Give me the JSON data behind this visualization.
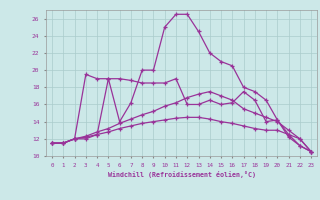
{
  "xlabel": "Windchill (Refroidissement éolien,°C)",
  "bg_color": "#cce8e8",
  "grid_color": "#aacccc",
  "line_color": "#993399",
  "xlim": [
    -0.5,
    23.5
  ],
  "ylim": [
    10,
    27
  ],
  "yticks": [
    10,
    12,
    14,
    16,
    18,
    20,
    22,
    24,
    26
  ],
  "xticks": [
    0,
    1,
    2,
    3,
    4,
    5,
    6,
    7,
    8,
    9,
    10,
    11,
    12,
    13,
    14,
    15,
    16,
    17,
    18,
    19,
    20,
    21,
    22,
    23
  ],
  "series1": {
    "x": [
      0,
      1,
      2,
      3,
      4,
      5,
      6,
      7,
      8,
      9,
      10,
      11,
      12,
      13,
      14,
      15,
      16,
      17,
      18,
      19,
      20,
      21,
      22,
      23
    ],
    "y": [
      11.5,
      11.5,
      12.0,
      19.5,
      19.0,
      19.0,
      14.0,
      16.2,
      20.0,
      20.0,
      25.0,
      26.5,
      26.5,
      24.5,
      22.0,
      21.0,
      20.5,
      18.0,
      17.5,
      16.5,
      14.2,
      12.2,
      11.2,
      10.5
    ]
  },
  "series2": {
    "x": [
      0,
      1,
      2,
      3,
      4,
      5,
      6,
      7,
      8,
      9,
      10,
      11,
      12,
      13,
      14,
      15,
      16,
      17,
      18,
      19,
      20,
      21,
      22,
      23
    ],
    "y": [
      11.5,
      11.5,
      12.0,
      12.0,
      12.5,
      19.0,
      19.0,
      18.8,
      18.5,
      18.5,
      18.5,
      19.0,
      16.0,
      16.0,
      16.5,
      16.0,
      16.2,
      17.5,
      16.5,
      14.0,
      14.2,
      12.5,
      11.2,
      10.5
    ]
  },
  "series3": {
    "x": [
      0,
      1,
      2,
      3,
      4,
      5,
      6,
      7,
      8,
      9,
      10,
      11,
      12,
      13,
      14,
      15,
      16,
      17,
      18,
      19,
      20,
      21,
      22,
      23
    ],
    "y": [
      11.5,
      11.5,
      12.0,
      12.3,
      12.8,
      13.2,
      13.8,
      14.3,
      14.8,
      15.2,
      15.8,
      16.2,
      16.8,
      17.2,
      17.5,
      17.0,
      16.5,
      15.5,
      15.0,
      14.5,
      14.0,
      13.0,
      12.0,
      10.5
    ]
  },
  "series4": {
    "x": [
      0,
      1,
      2,
      3,
      4,
      5,
      6,
      7,
      8,
      9,
      10,
      11,
      12,
      13,
      14,
      15,
      16,
      17,
      18,
      19,
      20,
      21,
      22,
      23
    ],
    "y": [
      11.5,
      11.5,
      12.0,
      12.2,
      12.5,
      12.8,
      13.2,
      13.5,
      13.8,
      14.0,
      14.2,
      14.4,
      14.5,
      14.5,
      14.3,
      14.0,
      13.8,
      13.5,
      13.2,
      13.0,
      13.0,
      12.5,
      12.0,
      10.5
    ]
  }
}
